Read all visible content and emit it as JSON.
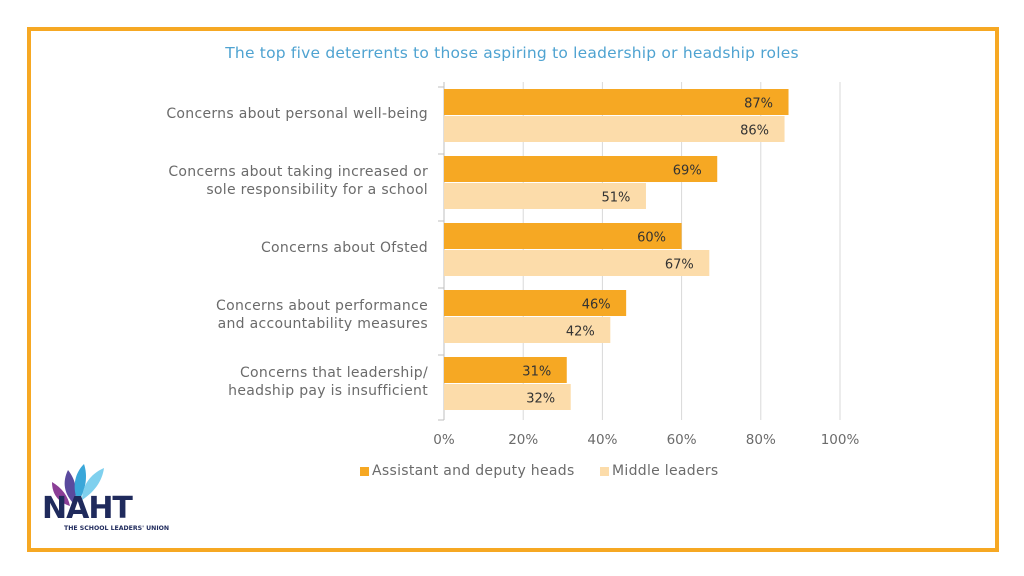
{
  "colors": {
    "border": "#F6A823",
    "title": "#4FA3D1",
    "series1": "#F6A823",
    "series2": "#FCDCAA",
    "text": "#6b6b6b",
    "grid": "#d9d9d9",
    "logo_navy": "#1F2A5C",
    "logo_purple": "#5A4A9E",
    "logo_blue": "#3AA7D9"
  },
  "logo": {
    "name": "NAHT",
    "tagline": "THE SCHOOL LEADERS' UNION"
  },
  "chart_data": {
    "type": "bar",
    "orientation": "horizontal",
    "title": "The top five deterrents to those aspiring to leadership or headship roles",
    "categories": [
      [
        "Concerns about personal well-being"
      ],
      [
        "Concerns about taking increased or",
        "sole responsibility for a school"
      ],
      [
        "Concerns about Ofsted"
      ],
      [
        "Concerns about performance",
        "and accountability measures"
      ],
      [
        "Concerns that leadership/",
        "headship pay is insufficient"
      ]
    ],
    "series": [
      {
        "name": "Assistant and deputy heads",
        "values": [
          87,
          69,
          60,
          46,
          31
        ]
      },
      {
        "name": "Middle leaders",
        "values": [
          86,
          51,
          67,
          42,
          32
        ]
      }
    ],
    "value_suffix": "%",
    "xlim": [
      0,
      100
    ],
    "xticks": [
      0,
      20,
      40,
      60,
      80,
      100
    ],
    "xtick_labels": [
      "0%",
      "20%",
      "40%",
      "60%",
      "80%",
      "100%"
    ],
    "grid": true,
    "legend_position": "bottom"
  }
}
